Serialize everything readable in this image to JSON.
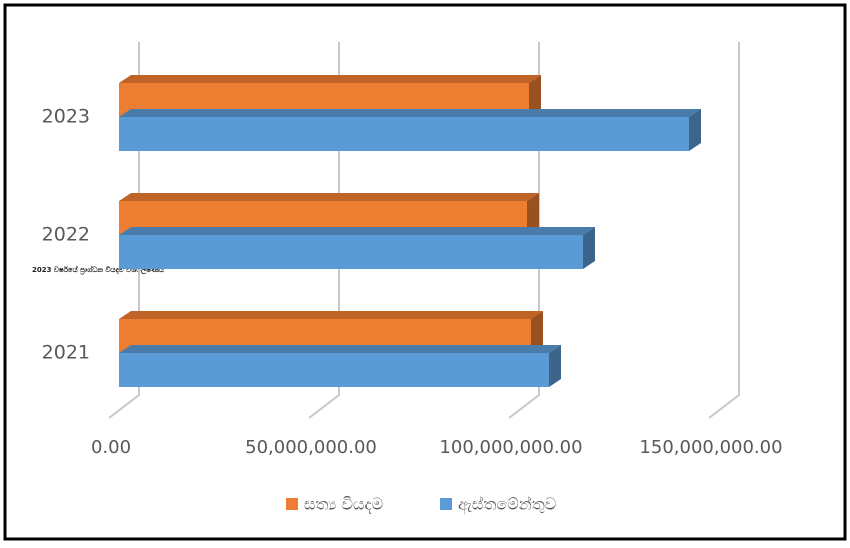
{
  "chart_data": {
    "type": "bar3d_horizontal",
    "annotation": "2023 වර්ෂයේ ප්‍රාග්ධන වියදම් විශ්ලේෂණය",
    "categories": [
      "2021",
      "2022",
      "2023"
    ],
    "series": [
      {
        "name": "සත්‍ය වියදම",
        "color": "#ed7d31",
        "values": [
          103000000,
          102000000,
          102500000
        ]
      },
      {
        "name": "ඇස්තමේන්තුව",
        "color": "#5b9bd5",
        "values": [
          107500000,
          116000000,
          142500000
        ]
      }
    ],
    "xlim": [
      0,
      150000000
    ],
    "xticks": [
      {
        "value": 0,
        "label": "0.00"
      },
      {
        "value": 50000000,
        "label": "50,000,000.00"
      },
      {
        "value": 100000000,
        "label": "100,000,000.00"
      },
      {
        "value": 150000000,
        "label": "150,000,000.00"
      }
    ],
    "grid": true,
    "legend": "bottom"
  }
}
